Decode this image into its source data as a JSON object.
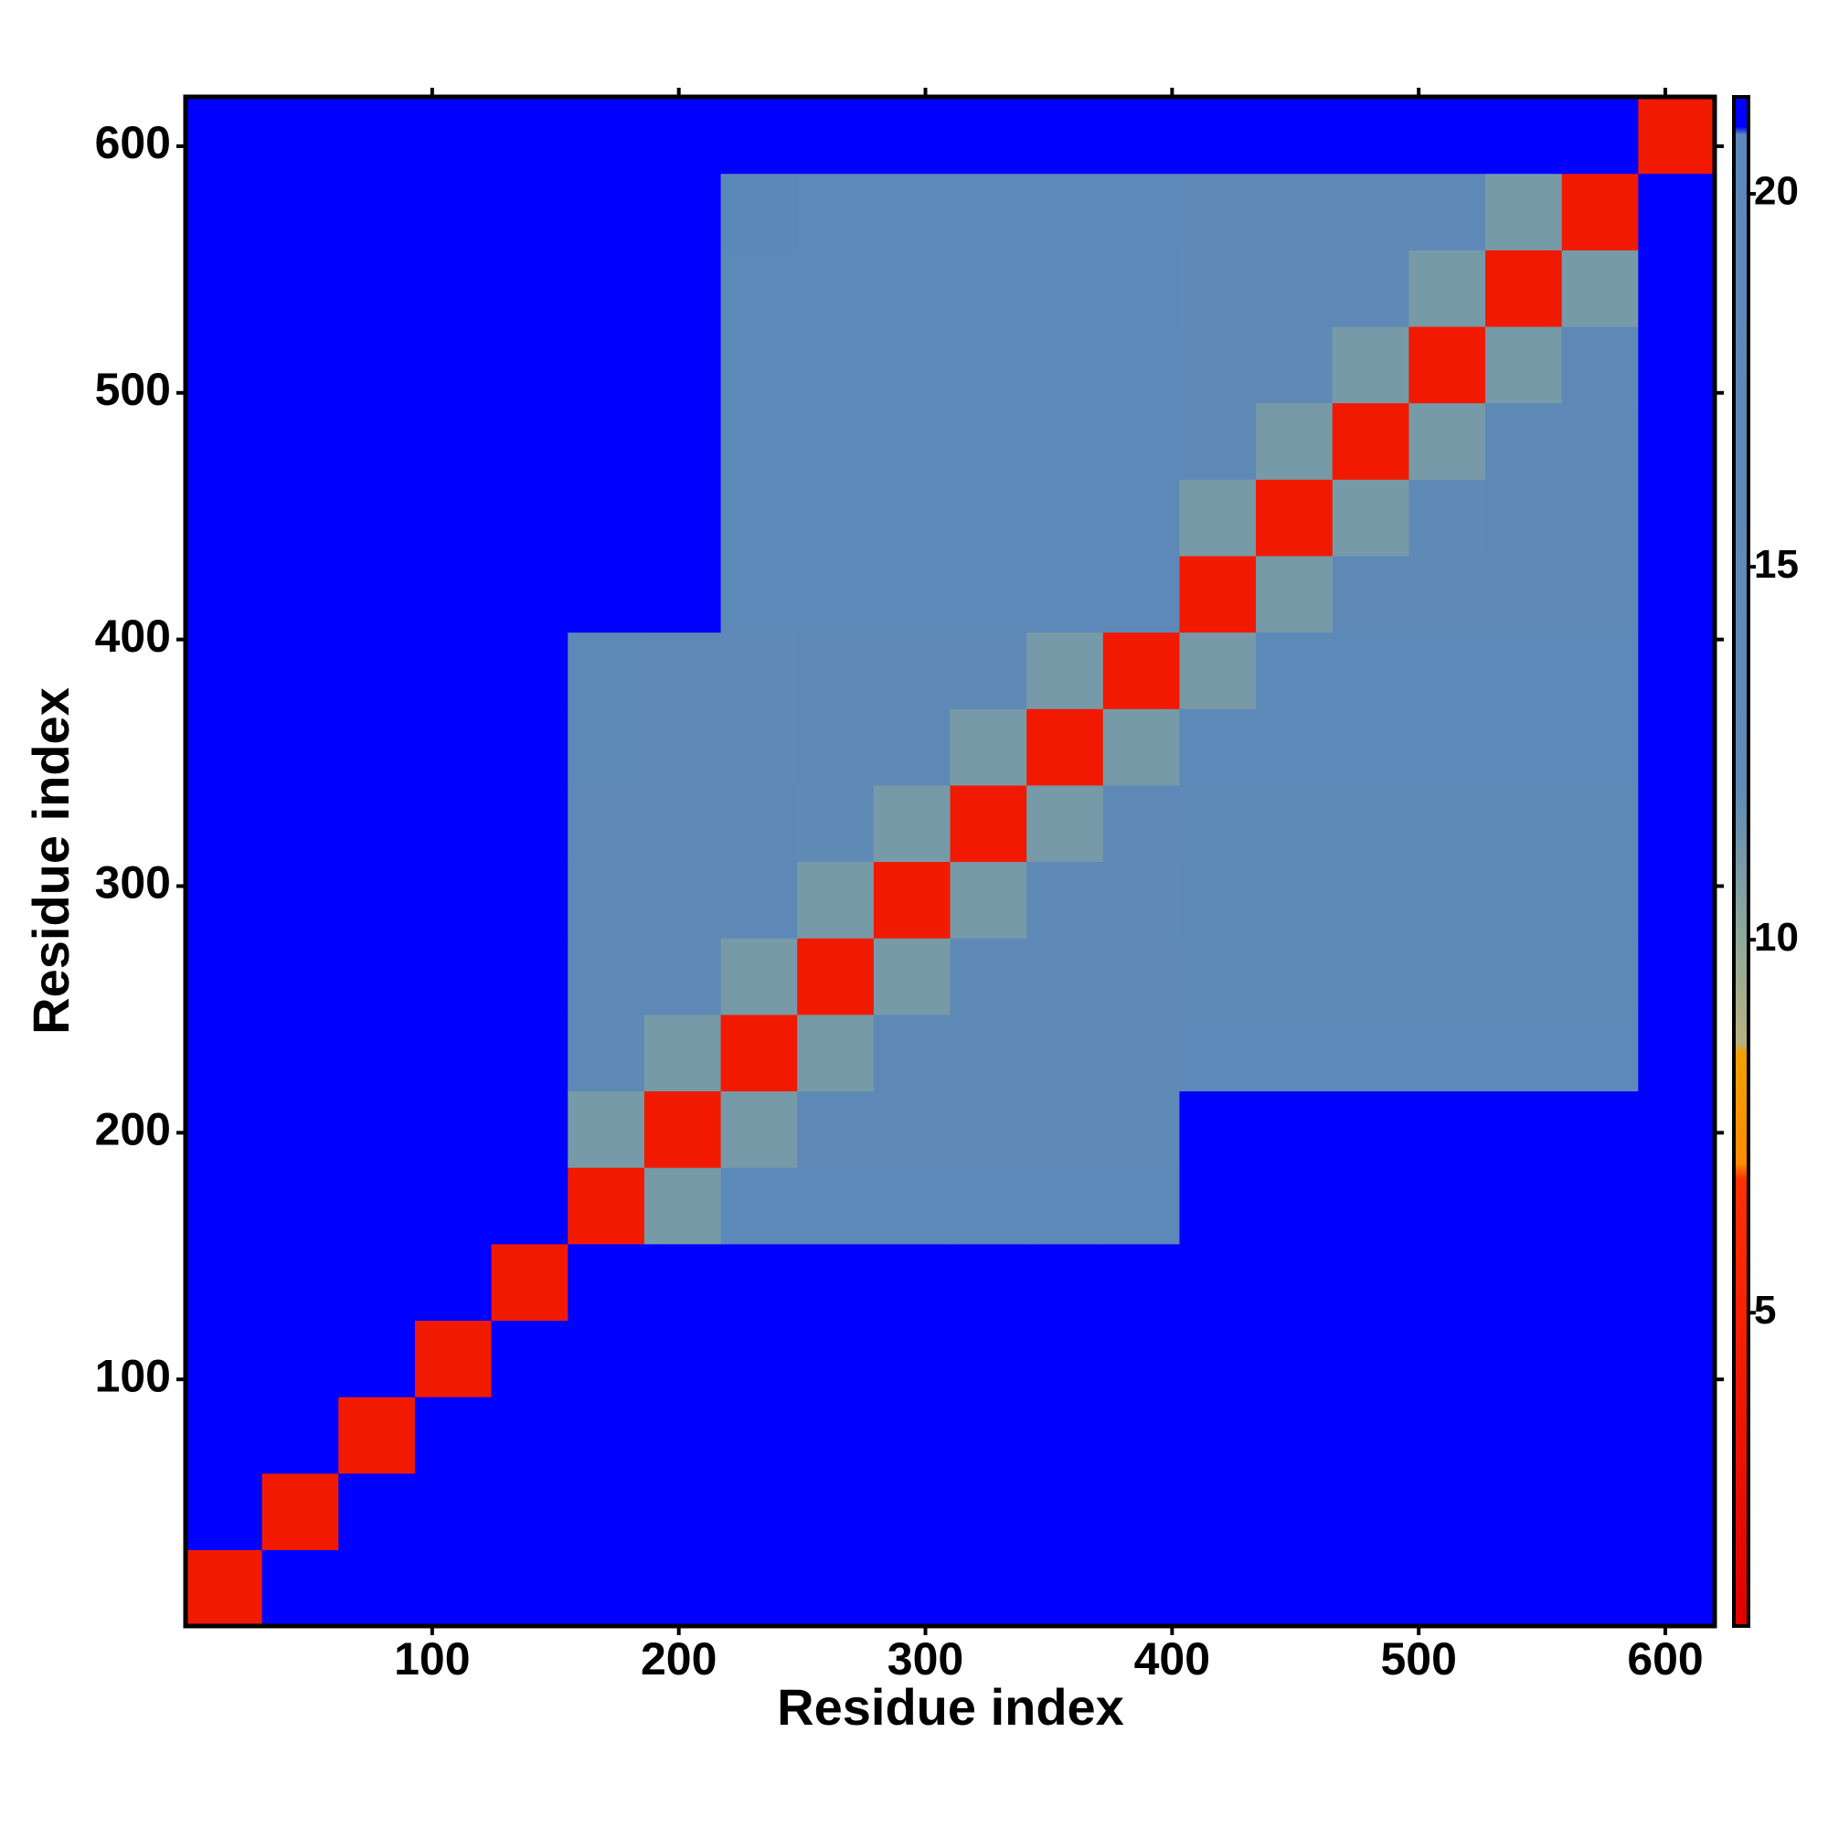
{
  "chart_data": {
    "type": "heatmap",
    "xlabel": "Residue index",
    "ylabel": "Residue index",
    "xlim": [
      0,
      620
    ],
    "ylim": [
      0,
      620
    ],
    "xticks": [
      100,
      200,
      300,
      400,
      500,
      600
    ],
    "yticks": [
      100,
      200,
      300,
      400,
      500,
      600
    ],
    "xbins": [
      0,
      31,
      62,
      93,
      124,
      155,
      186,
      217,
      248,
      279,
      310,
      341,
      372,
      403,
      434,
      465,
      496,
      527,
      558,
      589,
      620
    ],
    "ybins": [
      0,
      31,
      62,
      93,
      124,
      155,
      186,
      217,
      248,
      279,
      310,
      341,
      372,
      403,
      434,
      465,
      496,
      527,
      558,
      589,
      620
    ],
    "zlim": [
      0.8,
      21.3
    ],
    "zticks": [
      5,
      10,
      15,
      20
    ],
    "colorscale": [
      [
        0.8,
        "#e00000"
      ],
      [
        6.8,
        "#ff3000"
      ],
      [
        7.0,
        "#ff8c00"
      ],
      [
        8.5,
        "#f0a000"
      ],
      [
        8.6,
        "#b8b080"
      ],
      [
        10,
        "#8faa9a"
      ],
      [
        12,
        "#5f8ab5"
      ],
      [
        20.8,
        "#5b88ba"
      ],
      [
        20.9,
        "#0000ff"
      ],
      [
        21.3,
        "#0000ff"
      ]
    ],
    "z": [
      [
        4,
        21,
        21,
        21,
        21,
        21,
        21,
        21,
        21,
        21,
        21,
        21,
        21,
        21,
        21,
        21,
        21,
        21,
        21,
        21
      ],
      [
        21,
        4,
        21,
        21,
        21,
        21,
        21,
        21,
        21,
        21,
        21,
        21,
        21,
        21,
        21,
        21,
        21,
        21,
        21,
        21
      ],
      [
        21,
        21,
        4,
        21,
        21,
        21,
        21,
        21,
        21,
        21,
        21,
        21,
        21,
        21,
        21,
        21,
        21,
        21,
        21,
        21
      ],
      [
        21,
        21,
        21,
        4,
        21,
        21,
        21,
        21,
        21,
        21,
        21,
        21,
        21,
        21,
        21,
        21,
        21,
        21,
        21,
        21
      ],
      [
        21,
        21,
        21,
        21,
        4,
        21,
        21,
        21,
        21,
        21,
        21,
        21,
        21,
        21,
        21,
        21,
        21,
        21,
        21,
        21
      ],
      [
        21,
        21,
        21,
        21,
        21,
        4,
        11,
        18,
        18,
        18,
        18,
        18,
        18,
        21,
        21,
        21,
        21,
        21,
        21,
        21
      ],
      [
        21,
        21,
        21,
        21,
        21,
        11,
        4,
        11,
        15,
        15,
        15,
        15,
        15,
        21,
        21,
        21,
        21,
        21,
        21,
        21
      ],
      [
        21,
        21,
        21,
        21,
        21,
        15,
        11,
        4,
        11,
        15,
        15,
        15,
        15,
        18,
        18,
        18,
        18,
        18,
        18,
        21
      ],
      [
        21,
        21,
        21,
        21,
        21,
        15,
        15,
        11,
        4,
        11,
        15,
        15,
        15,
        16,
        16,
        16,
        16,
        16,
        16,
        21
      ],
      [
        21,
        21,
        21,
        21,
        21,
        15,
        15,
        15,
        11,
        4,
        11,
        15,
        12,
        16,
        16,
        16,
        16,
        16,
        16,
        21
      ],
      [
        21,
        21,
        21,
        21,
        21,
        15,
        15,
        15,
        12,
        11,
        4,
        11,
        15,
        16,
        16,
        16,
        16,
        16,
        16,
        21
      ],
      [
        21,
        21,
        21,
        21,
        21,
        16,
        15,
        12,
        15,
        15,
        11,
        4,
        11,
        17,
        17,
        17,
        17,
        17,
        17,
        21
      ],
      [
        21,
        21,
        21,
        21,
        21,
        16,
        15,
        12,
        15,
        15,
        15,
        11,
        4,
        11,
        17,
        17,
        17,
        17,
        17,
        21
      ],
      [
        21,
        21,
        21,
        21,
        21,
        21,
        21,
        18,
        17,
        17,
        17,
        17,
        17,
        4,
        11,
        15,
        15,
        15,
        15,
        21
      ],
      [
        21,
        21,
        21,
        21,
        21,
        21,
        21,
        18,
        17,
        17,
        17,
        17,
        17,
        11,
        4,
        11,
        12,
        15,
        15,
        21
      ],
      [
        21,
        21,
        21,
        21,
        21,
        21,
        21,
        18,
        17,
        17,
        17,
        17,
        17,
        15,
        11,
        4,
        11,
        15,
        15,
        21
      ],
      [
        21,
        21,
        21,
        21,
        21,
        21,
        21,
        18,
        17,
        17,
        17,
        17,
        17,
        15,
        12,
        11,
        4,
        11,
        15,
        21
      ],
      [
        21,
        21,
        21,
        21,
        21,
        21,
        21,
        18,
        17,
        17,
        17,
        17,
        17,
        12,
        15,
        15,
        11,
        4,
        11,
        21
      ],
      [
        21,
        21,
        21,
        21,
        21,
        21,
        21,
        19,
        18,
        18,
        18,
        18,
        18,
        15,
        15,
        15,
        15,
        11,
        4,
        21
      ],
      [
        21,
        21,
        21,
        21,
        21,
        21,
        21,
        21,
        21,
        21,
        21,
        21,
        21,
        21,
        21,
        21,
        21,
        21,
        21,
        4
      ]
    ]
  }
}
